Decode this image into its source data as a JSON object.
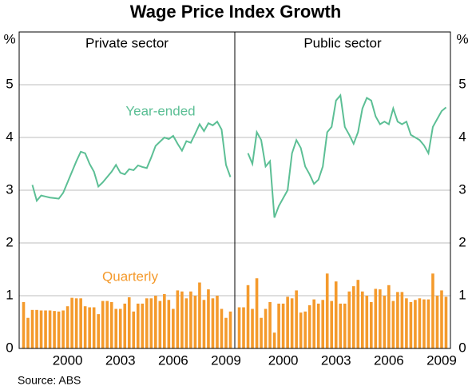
{
  "title": "Wage Price Index Growth",
  "source": "Source: ABS",
  "chart_data": [
    {
      "type": "bar",
      "title": "Private sector",
      "y_label": "%",
      "xlim": [
        1997.25,
        2009.5
      ],
      "xticks": [
        2000,
        2003,
        2006,
        2009
      ],
      "ylim": [
        0,
        6
      ],
      "yticks": [
        0,
        1,
        2,
        3,
        4,
        5
      ],
      "grid": true,
      "series": [
        {
          "name": "Year-ended",
          "type": "line",
          "color": "#5cbf95",
          "x": [
            1998.0,
            1998.25,
            1998.5,
            1998.75,
            1999.0,
            1999.25,
            1999.5,
            1999.75,
            2000.0,
            2000.25,
            2000.5,
            2000.75,
            2001.0,
            2001.25,
            2001.5,
            2001.75,
            2002.0,
            2002.25,
            2002.5,
            2002.75,
            2003.0,
            2003.25,
            2003.5,
            2003.75,
            2004.0,
            2004.25,
            2004.5,
            2004.75,
            2005.0,
            2005.25,
            2005.5,
            2005.75,
            2006.0,
            2006.25,
            2006.5,
            2006.75,
            2007.0,
            2007.25,
            2007.5,
            2007.75,
            2008.0,
            2008.25,
            2008.5,
            2008.75,
            2009.0,
            2009.25
          ],
          "values": [
            3.1,
            2.8,
            2.9,
            2.88,
            2.86,
            2.85,
            2.84,
            2.95,
            3.15,
            3.35,
            3.55,
            3.73,
            3.7,
            3.5,
            3.35,
            3.07,
            3.15,
            3.25,
            3.35,
            3.48,
            3.33,
            3.3,
            3.4,
            3.38,
            3.47,
            3.44,
            3.42,
            3.62,
            3.84,
            3.92,
            4.0,
            3.97,
            4.03,
            3.88,
            3.75,
            3.93,
            3.9,
            4.07,
            4.25,
            4.12,
            4.27,
            4.23,
            4.3,
            4.15,
            3.48,
            3.25
          ]
        },
        {
          "name": "Quarterly",
          "type": "bar",
          "color": "#f49a2c",
          "x": [
            1997.5,
            1997.75,
            1998.0,
            1998.25,
            1998.5,
            1998.75,
            1999.0,
            1999.25,
            1999.5,
            1999.75,
            2000.0,
            2000.25,
            2000.5,
            2000.75,
            2001.0,
            2001.25,
            2001.5,
            2001.75,
            2002.0,
            2002.25,
            2002.5,
            2002.75,
            2003.0,
            2003.25,
            2003.5,
            2003.75,
            2004.0,
            2004.25,
            2004.5,
            2004.75,
            2005.0,
            2005.25,
            2005.5,
            2005.75,
            2006.0,
            2006.25,
            2006.5,
            2006.75,
            2007.0,
            2007.25,
            2007.5,
            2007.75,
            2008.0,
            2008.25,
            2008.5,
            2008.75,
            2009.0,
            2009.25
          ],
          "values": [
            0.88,
            0.58,
            0.73,
            0.73,
            0.72,
            0.72,
            0.72,
            0.71,
            0.7,
            0.72,
            0.8,
            0.96,
            0.95,
            0.95,
            0.8,
            0.78,
            0.78,
            0.65,
            0.9,
            0.9,
            0.88,
            0.75,
            0.75,
            0.85,
            0.97,
            0.7,
            0.85,
            0.85,
            0.95,
            0.95,
            1.0,
            0.9,
            1.03,
            0.92,
            0.75,
            1.1,
            1.08,
            0.95,
            1.08,
            1.0,
            1.25,
            0.92,
            1.12,
            0.95,
            1.0,
            0.75,
            0.58,
            0.7
          ]
        }
      ]
    },
    {
      "type": "bar",
      "title": "Public sector",
      "y_label": "%",
      "xlim": [
        1997.25,
        2009.5
      ],
      "xticks": [
        2000,
        2003,
        2006,
        2009
      ],
      "ylim": [
        0,
        6
      ],
      "yticks": [
        0,
        1,
        2,
        3,
        4,
        5
      ],
      "grid": true,
      "series": [
        {
          "type": "line",
          "color": "#5cbf95",
          "x": [
            1998.0,
            1998.25,
            1998.5,
            1998.75,
            1999.0,
            1999.25,
            1999.5,
            1999.75,
            2000.0,
            2000.25,
            2000.5,
            2000.75,
            2001.0,
            2001.25,
            2001.5,
            2001.75,
            2002.0,
            2002.25,
            2002.5,
            2002.75,
            2003.0,
            2003.25,
            2003.5,
            2003.75,
            2004.0,
            2004.25,
            2004.5,
            2004.75,
            2005.0,
            2005.25,
            2005.5,
            2005.75,
            2006.0,
            2006.25,
            2006.5,
            2006.75,
            2007.0,
            2007.25,
            2007.5,
            2007.75,
            2008.0,
            2008.25,
            2008.5,
            2008.75,
            2009.0,
            2009.25
          ],
          "values": [
            3.7,
            3.5,
            4.1,
            3.95,
            3.45,
            3.55,
            2.48,
            2.7,
            2.85,
            3.0,
            3.7,
            3.95,
            3.8,
            3.45,
            3.3,
            3.12,
            3.2,
            3.45,
            4.1,
            4.2,
            4.7,
            4.8,
            4.2,
            4.05,
            3.88,
            4.1,
            4.55,
            4.75,
            4.7,
            4.4,
            4.25,
            4.3,
            4.25,
            4.55,
            4.3,
            4.25,
            4.3,
            4.05,
            4.0,
            3.95,
            3.85,
            3.7,
            4.2,
            4.35,
            4.5,
            4.57
          ]
        },
        {
          "type": "bar",
          "color": "#f49a2c",
          "x": [
            1997.5,
            1997.75,
            1998.0,
            1998.25,
            1998.5,
            1998.75,
            1999.0,
            1999.25,
            1999.5,
            1999.75,
            2000.0,
            2000.25,
            2000.5,
            2000.75,
            2001.0,
            2001.25,
            2001.5,
            2001.75,
            2002.0,
            2002.25,
            2002.5,
            2002.75,
            2003.0,
            2003.25,
            2003.5,
            2003.75,
            2004.0,
            2004.25,
            2004.5,
            2004.75,
            2005.0,
            2005.25,
            2005.5,
            2005.75,
            2006.0,
            2006.25,
            2006.5,
            2006.75,
            2007.0,
            2007.25,
            2007.5,
            2007.75,
            2008.0,
            2008.25,
            2008.5,
            2008.75,
            2009.0,
            2009.25
          ],
          "values": [
            0.78,
            0.78,
            1.2,
            0.75,
            1.33,
            0.58,
            0.75,
            0.88,
            0.3,
            0.85,
            0.85,
            0.98,
            0.95,
            1.1,
            0.68,
            0.7,
            0.82,
            0.93,
            0.85,
            0.92,
            1.42,
            0.9,
            1.27,
            0.85,
            0.85,
            1.08,
            1.18,
            1.3,
            1.08,
            1.0,
            0.88,
            1.13,
            1.12,
            1.0,
            1.2,
            0.9,
            1.07,
            1.07,
            0.95,
            0.88,
            0.92,
            0.95,
            0.93,
            0.93,
            1.42,
            1.0,
            1.1,
            0.98
          ]
        }
      ]
    }
  ]
}
